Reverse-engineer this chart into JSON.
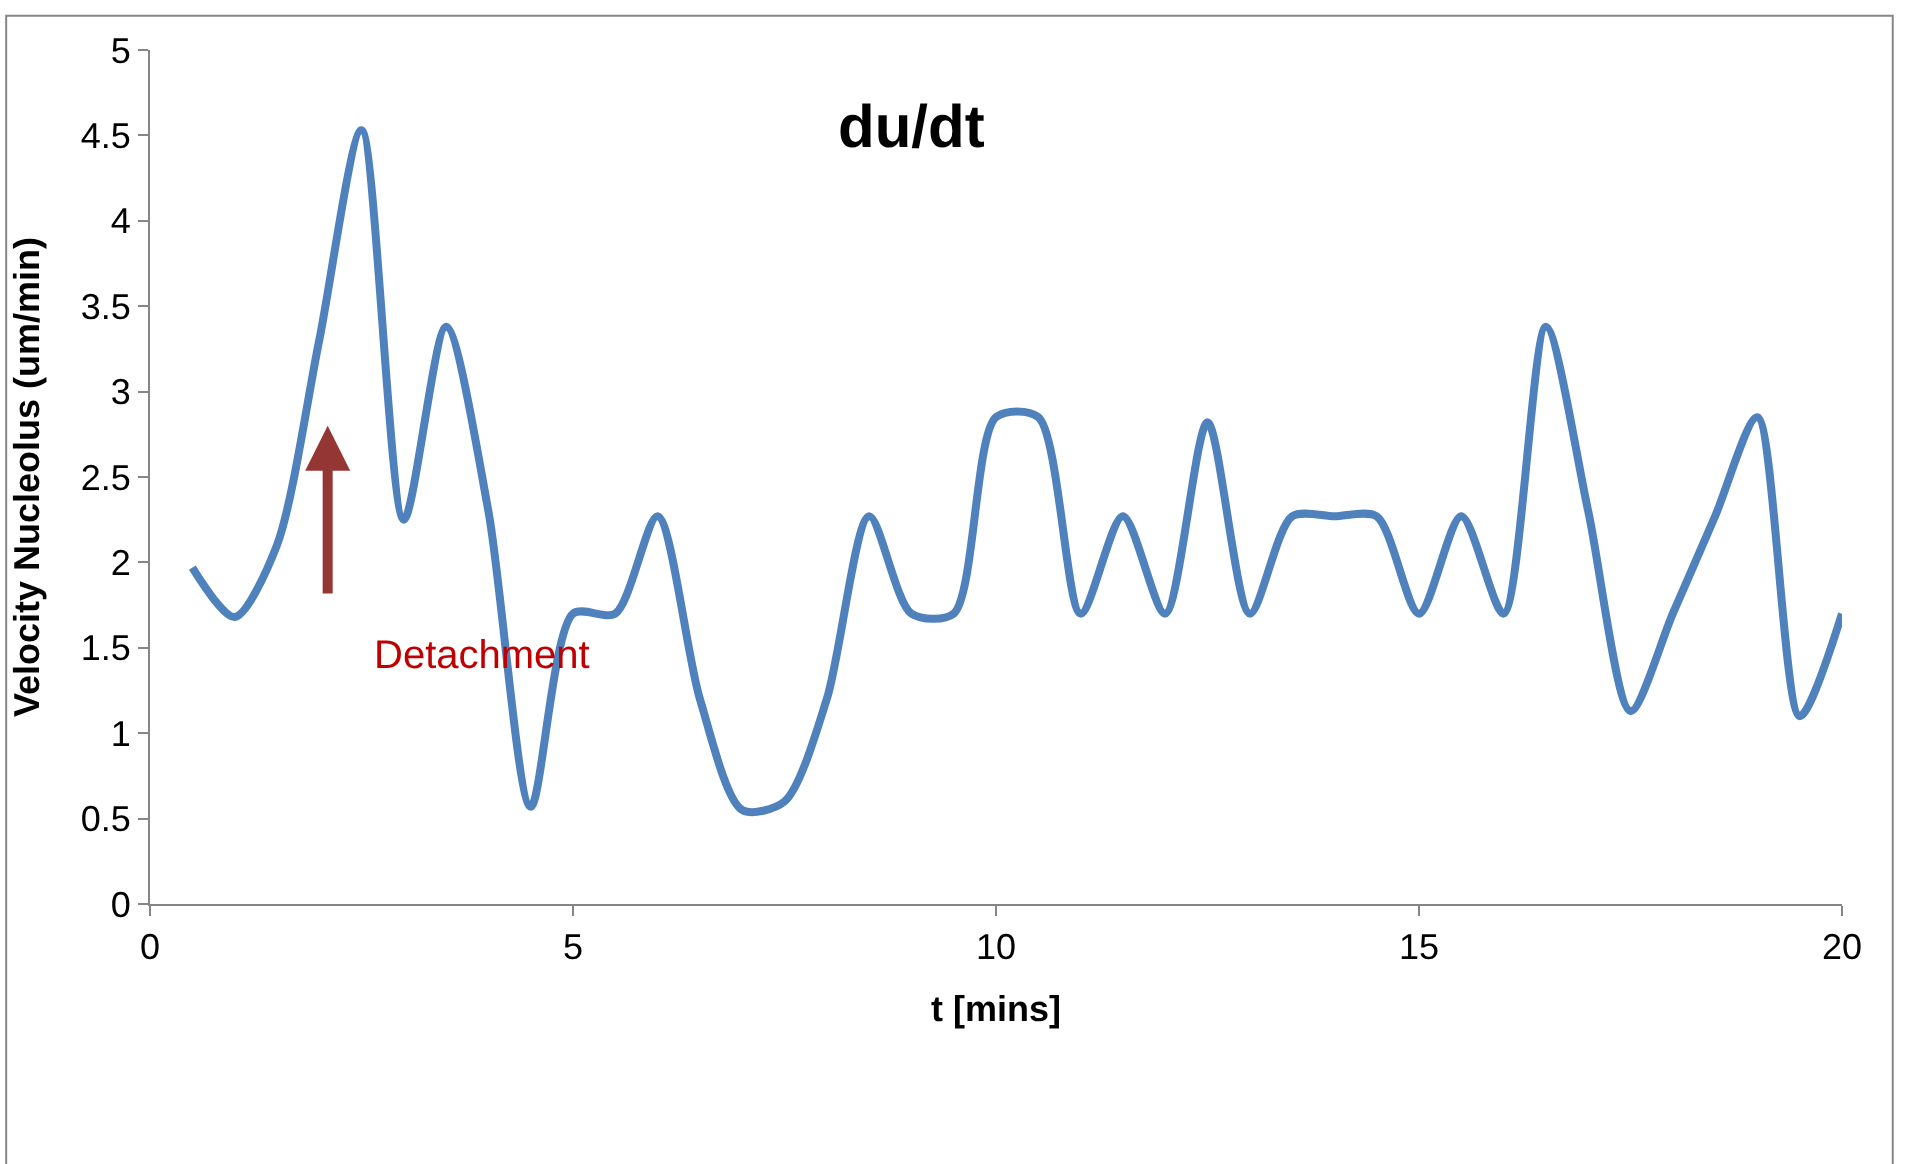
{
  "chart_data": {
    "type": "line",
    "title": "du/dt",
    "xlabel": "t [mins]",
    "ylabel": "Velocity Nucleolus (um/min)",
    "x": [
      0.5,
      1.0,
      1.5,
      2.0,
      2.5,
      3.0,
      3.5,
      4.0,
      4.5,
      5.0,
      5.5,
      6.0,
      6.5,
      7.0,
      7.5,
      8.0,
      8.5,
      9.0,
      9.5,
      10.0,
      10.5,
      11.0,
      11.5,
      12.0,
      12.5,
      13.0,
      13.5,
      14.0,
      14.5,
      15.0,
      15.5,
      16.0,
      16.5,
      17.0,
      17.5,
      18.0,
      18.5,
      19.0,
      19.5,
      20.0
    ],
    "series": [
      {
        "color": "#4f81bd",
        "values": [
          1.97,
          1.68,
          2.1,
          3.3,
          4.53,
          2.25,
          3.38,
          2.3,
          0.57,
          1.7,
          1.7,
          2.27,
          1.2,
          0.55,
          0.6,
          1.2,
          2.27,
          1.7,
          1.7,
          2.85,
          2.85,
          1.7,
          2.27,
          1.7,
          2.82,
          1.7,
          2.27,
          2.27,
          2.27,
          1.7,
          2.27,
          1.7,
          3.38,
          2.3,
          1.13,
          1.7,
          2.27,
          2.85,
          1.1,
          1.7
        ]
      }
    ],
    "xlim": [
      0,
      20
    ],
    "xticks": [
      0,
      5,
      10,
      15,
      20
    ],
    "ylim": [
      0,
      5
    ],
    "yticks": [
      0,
      0.5,
      1,
      1.5,
      2,
      2.5,
      3,
      3.5,
      4,
      4.5,
      5
    ],
    "annotations": [
      "Detachment"
    ],
    "marker": "none",
    "line_style": "solid"
  }
}
